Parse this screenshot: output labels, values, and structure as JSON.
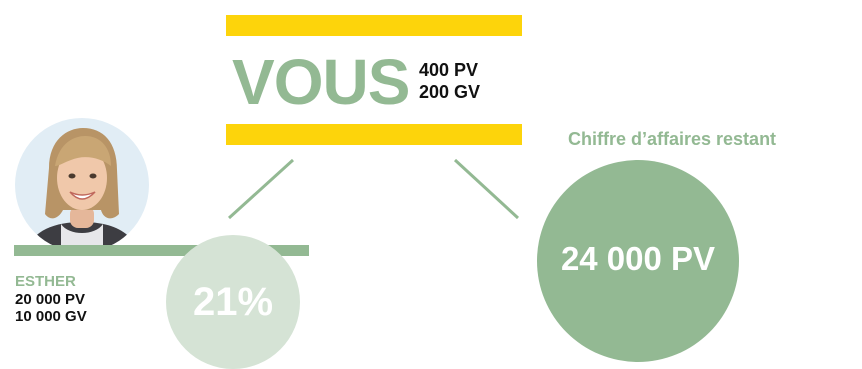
{
  "vous": {
    "label": "VOUS",
    "pv": "400 PV",
    "gv": "200 GV"
  },
  "esther": {
    "name": "ESTHER",
    "pv": "20 000 PV",
    "gv": "10 000 GV",
    "share": "21%"
  },
  "remaining": {
    "label": "Chiffre d’affaires restant",
    "value": "24 000 PV"
  },
  "colors": {
    "yellow": "#fdd40b",
    "green": "#93b993",
    "light_green": "#d5e3d5",
    "avatar_bg": "#e1edf5"
  }
}
